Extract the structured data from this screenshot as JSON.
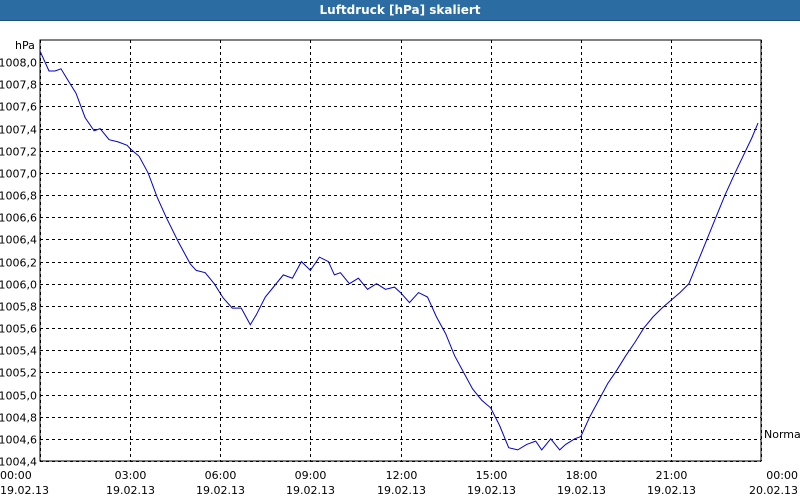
{
  "window": {
    "title": "Luftdruck [hPa] skaliert"
  },
  "chart_data": {
    "type": "line",
    "title": "Luftdruck [hPa] skaliert",
    "ylabel": "hPa",
    "xlabel": "",
    "ylim": [
      1004.4,
      1008.2
    ],
    "y_ticks": [
      "1008,0",
      "1007,8",
      "1007,6",
      "1007,4",
      "1007,2",
      "1007,0",
      "1006,8",
      "1006,6",
      "1006,4",
      "1006,2",
      "1006,0",
      "1005,8",
      "1005,6",
      "1005,4",
      "1005,2",
      "1005,0",
      "1004,8",
      "1004,6",
      "1004,4"
    ],
    "y_tick_values": [
      1008.0,
      1007.8,
      1007.6,
      1007.4,
      1007.2,
      1007.0,
      1006.8,
      1006.6,
      1006.4,
      1006.2,
      1006.0,
      1005.8,
      1005.6,
      1005.4,
      1005.2,
      1005.0,
      1004.8,
      1004.6,
      1004.4
    ],
    "x_range_hours": [
      0,
      24
    ],
    "x_ticks": [
      {
        "time": "00:00",
        "date": "19.02.13"
      },
      {
        "time": "03:00",
        "date": "19.02.13"
      },
      {
        "time": "06:00",
        "date": "19.02.13"
      },
      {
        "time": "09:00",
        "date": "19.02.13"
      },
      {
        "time": "12:00",
        "date": "19.02.13"
      },
      {
        "time": "15:00",
        "date": "19.02.13"
      },
      {
        "time": "18:00",
        "date": "19.02.13"
      },
      {
        "time": "21:00",
        "date": "19.02.13"
      },
      {
        "time": "00:00",
        "date": "20.02.13"
      }
    ],
    "x_tick_hours": [
      0,
      3,
      6,
      9,
      12,
      15,
      18,
      21,
      24
    ],
    "grid": true,
    "annotation": "Normal",
    "line_color": "#0000cc",
    "series": [
      {
        "x_hours": [
          0,
          0.3,
          0.5,
          0.7,
          0.9,
          1.2,
          1.5,
          1.8,
          2.0,
          2.3,
          2.6,
          2.9,
          3.0,
          3.3,
          3.6,
          3.9,
          4.2,
          4.6,
          5.0,
          5.2,
          5.5,
          5.8,
          6.1,
          6.4,
          6.7,
          7.0,
          7.2,
          7.5,
          7.8,
          8.1,
          8.4,
          8.7,
          9.0,
          9.3,
          9.6,
          9.8,
          10.0,
          10.3,
          10.6,
          10.9,
          11.2,
          11.5,
          11.8,
          12.0,
          12.3,
          12.6,
          12.9,
          13.2,
          13.5,
          13.8,
          14.1,
          14.4,
          14.7,
          15.0,
          15.3,
          15.6,
          15.9,
          16.2,
          16.5,
          16.7,
          17.0,
          17.3,
          17.5,
          17.8,
          18.0,
          18.3,
          18.6,
          18.9,
          19.2,
          19.5,
          19.8,
          20.1,
          20.4,
          20.7,
          21.0,
          21.3,
          21.6,
          21.9,
          22.2,
          22.5,
          22.8,
          23.1,
          23.4,
          23.7,
          23.9
        ],
        "values": [
          1008.1,
          1007.92,
          1007.92,
          1007.94,
          1007.85,
          1007.72,
          1007.5,
          1007.38,
          1007.4,
          1007.3,
          1007.28,
          1007.25,
          1007.22,
          1007.15,
          1007.0,
          1006.78,
          1006.6,
          1006.38,
          1006.18,
          1006.12,
          1006.1,
          1006.0,
          1005.87,
          1005.78,
          1005.78,
          1005.63,
          1005.72,
          1005.88,
          1005.98,
          1006.08,
          1006.05,
          1006.2,
          1006.12,
          1006.24,
          1006.2,
          1006.08,
          1006.1,
          1006.0,
          1006.05,
          1005.95,
          1006.0,
          1005.95,
          1005.97,
          1005.92,
          1005.83,
          1005.92,
          1005.88,
          1005.7,
          1005.55,
          1005.35,
          1005.2,
          1005.05,
          1004.95,
          1004.88,
          1004.72,
          1004.52,
          1004.5,
          1004.55,
          1004.58,
          1004.5,
          1004.6,
          1004.5,
          1004.55,
          1004.6,
          1004.62,
          1004.8,
          1004.95,
          1005.1,
          1005.22,
          1005.35,
          1005.47,
          1005.6,
          1005.7,
          1005.78,
          1005.85,
          1005.92,
          1006.0,
          1006.2,
          1006.4,
          1006.6,
          1006.8,
          1006.98,
          1007.15,
          1007.32,
          1007.45
        ]
      }
    ]
  }
}
